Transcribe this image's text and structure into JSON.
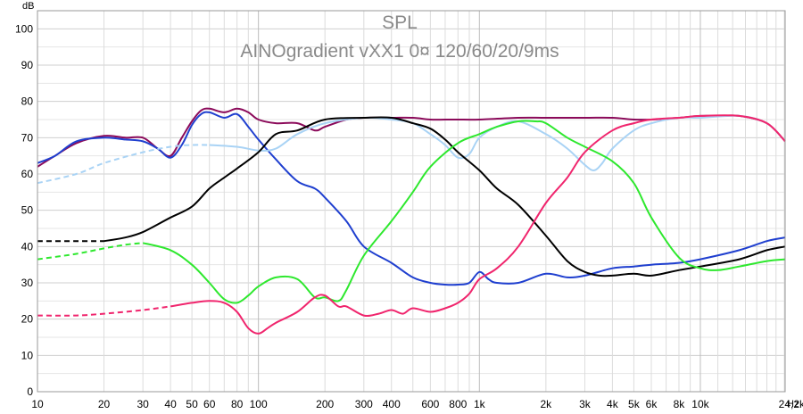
{
  "chart_data": {
    "type": "line",
    "title": "SPL",
    "subtitle": "AINOgradient vXX1 0¤ 120/60/20/9ms",
    "ylabel": "dB",
    "xlabel": "Hz",
    "xscale": "log",
    "xlim": [
      10,
      24200
    ],
    "ylim": [
      0,
      105
    ],
    "grid": true,
    "yticks": [
      {
        "v": 0,
        "label": "0"
      },
      {
        "v": 10,
        "label": "10"
      },
      {
        "v": 20,
        "label": "20"
      },
      {
        "v": 30,
        "label": "30"
      },
      {
        "v": 40,
        "label": "40"
      },
      {
        "v": 50,
        "label": "50"
      },
      {
        "v": 60,
        "label": "60"
      },
      {
        "v": 70,
        "label": "70"
      },
      {
        "v": 80,
        "label": "80"
      },
      {
        "v": 90,
        "label": "90"
      },
      {
        "v": 100,
        "label": "100"
      }
    ],
    "xticks": [
      {
        "v": 10,
        "label": "10"
      },
      {
        "v": 20,
        "label": "20"
      },
      {
        "v": 30,
        "label": "30"
      },
      {
        "v": 40,
        "label": "40"
      },
      {
        "v": 50,
        "label": "50"
      },
      {
        "v": 60,
        "label": "60"
      },
      {
        "v": 80,
        "label": "80"
      },
      {
        "v": 100,
        "label": "100"
      },
      {
        "v": 200,
        "label": "200"
      },
      {
        "v": 300,
        "label": "300"
      },
      {
        "v": 400,
        "label": "400"
      },
      {
        "v": 600,
        "label": "600"
      },
      {
        "v": 800,
        "label": "800"
      },
      {
        "v": 1000,
        "label": "1k"
      },
      {
        "v": 2000,
        "label": "2k"
      },
      {
        "v": 3000,
        "label": "3k"
      },
      {
        "v": 4000,
        "label": "4k"
      },
      {
        "v": 5000,
        "label": "5k"
      },
      {
        "v": 6000,
        "label": "6k"
      },
      {
        "v": 8000,
        "label": "8k"
      },
      {
        "v": 10000,
        "label": "10k"
      },
      {
        "v": 24200,
        "label": "24,2k"
      }
    ],
    "series": [
      {
        "color": "#8b0a5a",
        "x": [
          10,
          12,
          15,
          20,
          25,
          30,
          35,
          40,
          45,
          50,
          55,
          60,
          70,
          80,
          90,
          100,
          120,
          150,
          180,
          200,
          250,
          300,
          400,
          500,
          600,
          700,
          800,
          1000,
          1500,
          2000,
          3000,
          4000,
          5000,
          6000,
          8000,
          10000,
          12000,
          15000,
          20000,
          24200
        ],
        "y": [
          62,
          65,
          68.5,
          70.5,
          70,
          70,
          67,
          65,
          70,
          74.5,
          77.5,
          78,
          77,
          78,
          77,
          75,
          74,
          74,
          72,
          73,
          75,
          75.5,
          75.5,
          75.5,
          75,
          75,
          75,
          75,
          75.5,
          75.5,
          75.5,
          75.5,
          75,
          75,
          75.5,
          76,
          76,
          76,
          74,
          69
        ]
      },
      {
        "color": "#1f3fcf",
        "x": [
          10,
          12,
          15,
          20,
          25,
          30,
          35,
          40,
          45,
          50,
          55,
          60,
          70,
          80,
          90,
          100,
          120,
          150,
          180,
          200,
          250,
          300,
          400,
          500,
          600,
          700,
          800,
          900,
          1000,
          1100,
          1200,
          1500,
          2000,
          2500,
          3000,
          4000,
          5000,
          6000,
          8000,
          10000,
          15000,
          20000,
          24200
        ],
        "y": [
          63,
          65,
          69,
          70,
          69.5,
          69,
          67,
          64.5,
          68,
          73.5,
          76.5,
          77,
          75.5,
          76.5,
          73,
          69.5,
          64,
          58,
          56,
          53.5,
          47,
          40,
          35.5,
          31.5,
          30,
          29.5,
          29.5,
          30,
          33,
          31,
          30,
          30,
          32.5,
          31.5,
          32,
          34,
          34.5,
          35,
          35.5,
          36.5,
          39,
          41.5,
          42.5
        ]
      },
      {
        "color": "#a9d3f5",
        "x": [
          10,
          15,
          20,
          30,
          40,
          50,
          60,
          80,
          100,
          120,
          150,
          200,
          300,
          400,
          500,
          600,
          700,
          800,
          900,
          1000,
          1200,
          1500,
          2000,
          2500,
          3000,
          3300,
          3600,
          4000,
          5000,
          6000,
          8000,
          10000,
          15000,
          20000,
          24200
        ],
        "y": [
          57.5,
          60,
          63,
          66,
          67.5,
          68,
          68,
          67.5,
          66.5,
          67,
          71,
          74,
          75.5,
          75,
          74,
          71,
          68,
          64.5,
          65.5,
          70,
          73,
          74.5,
          71,
          67,
          62.5,
          61,
          63,
          67,
          72,
          74,
          75.5,
          75.5,
          76,
          74,
          69
        ]
      },
      {
        "color": "#000000",
        "x": [
          10,
          15,
          20,
          25,
          30,
          40,
          50,
          60,
          70,
          80,
          100,
          120,
          150,
          200,
          300,
          400,
          500,
          600,
          700,
          800,
          1000,
          1200,
          1500,
          2000,
          2500,
          3000,
          3500,
          4000,
          5000,
          6000,
          8000,
          10000,
          15000,
          20000,
          24200
        ],
        "y": [
          41.5,
          41.5,
          41.5,
          42.5,
          44,
          48,
          51,
          56,
          59,
          61.5,
          66,
          71,
          72,
          75,
          75.5,
          75.5,
          74,
          72.5,
          69.5,
          66,
          61,
          56,
          51.5,
          43,
          36,
          33,
          32,
          32,
          32.5,
          32,
          33.5,
          34.5,
          36.5,
          39,
          40
        ]
      },
      {
        "color": "#2ee82e",
        "x": [
          10,
          15,
          20,
          25,
          30,
          40,
          50,
          60,
          70,
          80,
          90,
          100,
          120,
          150,
          180,
          200,
          230,
          250,
          300,
          400,
          500,
          600,
          800,
          1000,
          1200,
          1500,
          1800,
          2000,
          2500,
          3000,
          4000,
          5000,
          6000,
          8000,
          10000,
          12000,
          15000,
          20000,
          24200
        ],
        "y": [
          36.5,
          38,
          39.5,
          40.5,
          41,
          39,
          35,
          30,
          25.5,
          24.5,
          26.5,
          29,
          31.5,
          31,
          26,
          26,
          25,
          28,
          37.5,
          47,
          55,
          62,
          68.5,
          71,
          73,
          74.5,
          74.5,
          74,
          70,
          67.5,
          63.5,
          57.5,
          48,
          37,
          34,
          33.5,
          34.5,
          36,
          36.5
        ]
      },
      {
        "color": "#f0256d",
        "x": [
          10,
          15,
          20,
          30,
          40,
          50,
          60,
          70,
          80,
          90,
          100,
          110,
          120,
          150,
          180,
          200,
          230,
          250,
          300,
          350,
          400,
          450,
          500,
          600,
          700,
          800,
          900,
          1000,
          1200,
          1500,
          2000,
          2500,
          3000,
          4000,
          5000,
          6000,
          8000,
          10000,
          15000,
          20000,
          24200
        ],
        "y": [
          21,
          21,
          21.5,
          22.5,
          23.5,
          24.5,
          25,
          24.5,
          22,
          17.5,
          16,
          17.5,
          19,
          22,
          26,
          26.5,
          23.5,
          23.5,
          21,
          21.5,
          22.5,
          21.5,
          23,
          22,
          23,
          24.5,
          27,
          31,
          34,
          40,
          52,
          59,
          66,
          72,
          74,
          75,
          75.5,
          76,
          76,
          74,
          69
        ]
      }
    ]
  }
}
